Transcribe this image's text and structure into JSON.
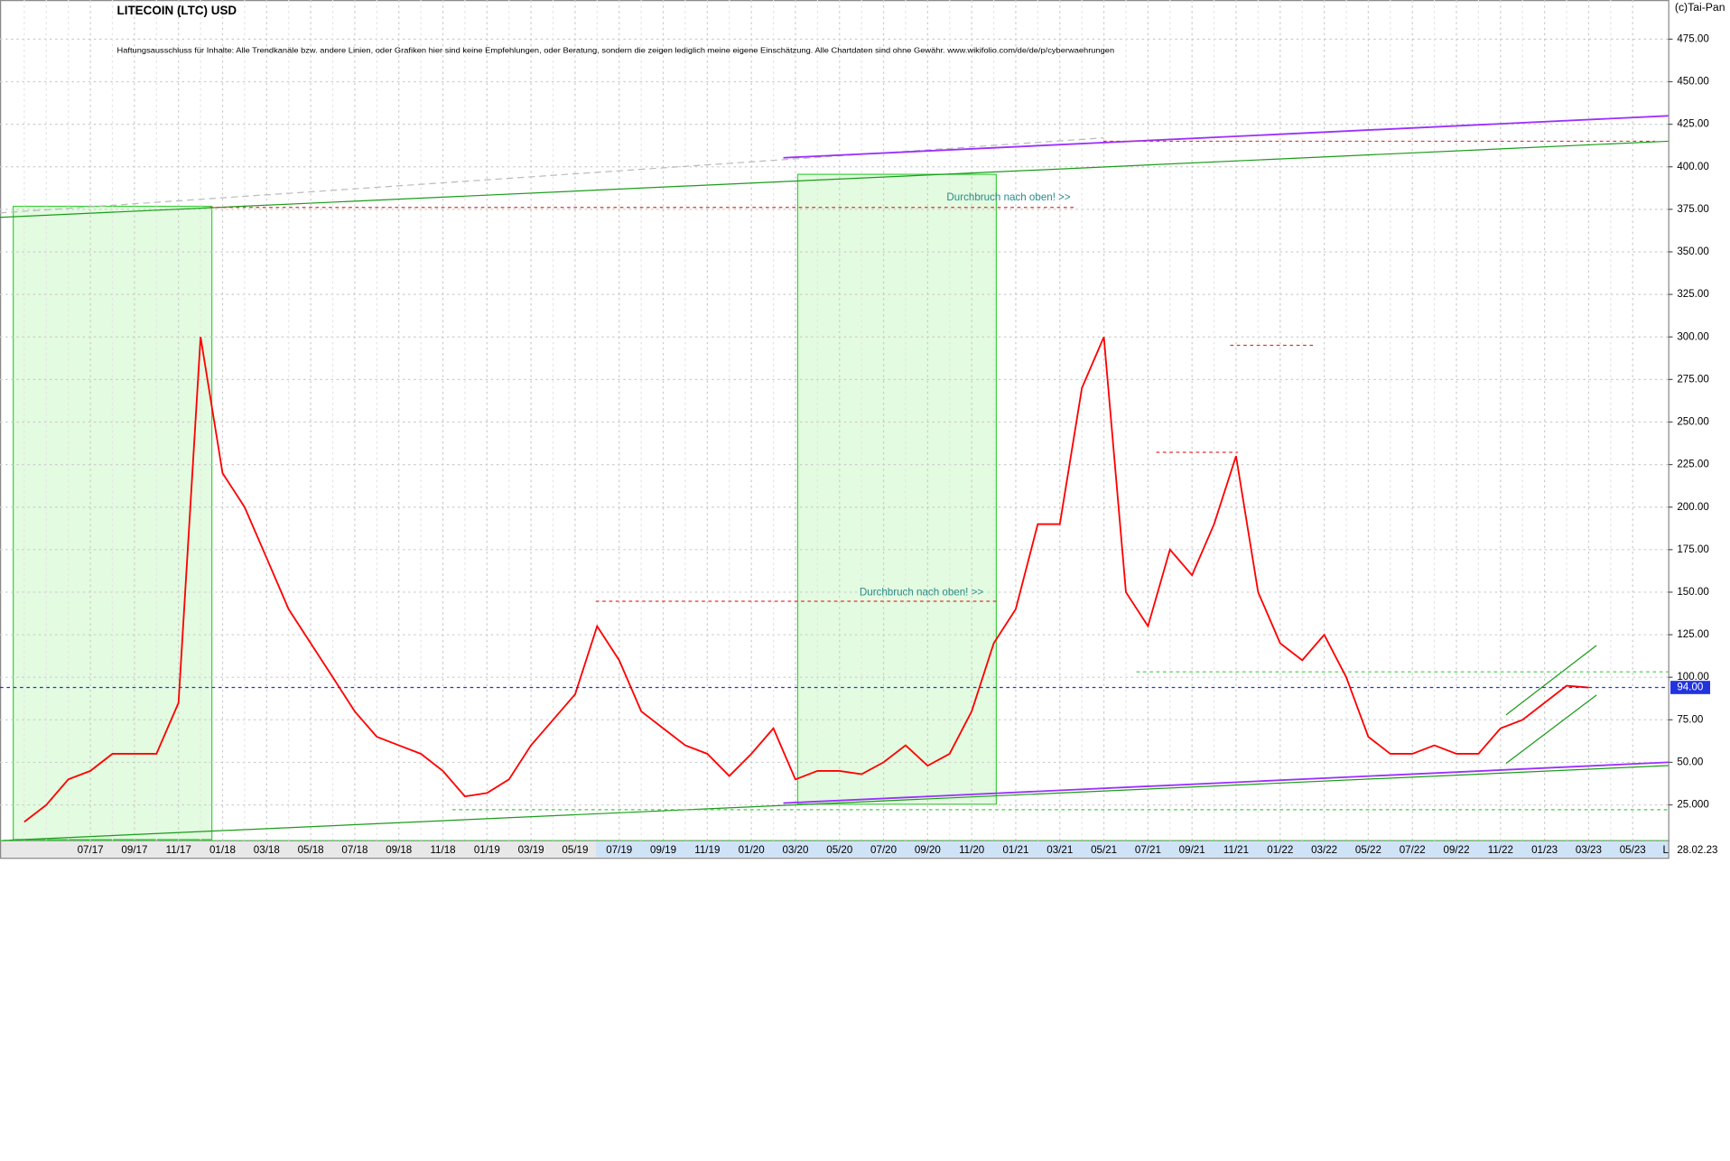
{
  "chart_data": {
    "type": "line",
    "title": "LITECOIN (LTC) USD",
    "subtitle": "Haftungsausschluss für Inhalte: Alle Trendkanäle bzw. andere Linien, oder Grafiken hier sind keine Empfehlungen, oder Beratung, sondern die zeigen lediglich meine eigene Einschätzung. Alle Chartdaten sind ohne Gewähr. www.wikifolio.com/de/de/p/cyberwaehrungen",
    "copyright": "(c)Tai-Pan",
    "date_label": "28.02.23",
    "corner_label": "L",
    "annotations": [
      "Durchbruch nach oben! >>",
      "Durchbruch nach oben! >>"
    ],
    "current_price": {
      "value": 94,
      "label": "94.00"
    },
    "categories": [
      null,
      null,
      null,
      "07/17",
      null,
      "09/17",
      null,
      "11/17",
      null,
      "01/18",
      null,
      "03/18",
      null,
      "05/18",
      null,
      "07/18",
      null,
      "09/18",
      null,
      "11/18",
      null,
      "01/19",
      null,
      "03/19",
      null,
      "05/19",
      null,
      "07/19",
      null,
      "09/19",
      null,
      "11/19",
      null,
      "01/20",
      null,
      "03/20",
      null,
      "05/20",
      null,
      "07/20",
      null,
      "09/20",
      null,
      "11/20",
      null,
      "01/21",
      null,
      "03/21",
      null,
      "05/21",
      null,
      "07/21",
      null,
      "09/21",
      null,
      "11/21",
      null,
      "01/22",
      null,
      "03/22",
      null,
      "05/22",
      null,
      "07/22",
      null,
      "09/22",
      null,
      "11/22",
      null,
      "01/23",
      null,
      "03/23",
      null,
      "05/23"
    ],
    "series": [
      {
        "name": "LTC",
        "color": "#ff0000",
        "values": [
          15,
          25,
          40,
          45,
          55,
          55,
          55,
          85,
          300,
          220,
          200,
          170,
          140,
          120,
          100,
          80,
          65,
          60,
          55,
          45,
          30,
          32,
          40,
          60,
          75,
          90,
          130,
          110,
          80,
          70,
          60,
          55,
          42,
          55,
          70,
          40,
          45,
          45,
          43,
          50,
          60,
          48,
          55,
          80,
          120,
          140,
          190,
          190,
          270,
          300,
          150,
          130,
          175,
          160,
          190,
          230,
          150,
          120,
          110,
          125,
          100,
          65,
          55,
          55,
          60,
          55,
          55,
          70,
          75,
          85,
          95,
          94,
          null,
          null
        ]
      }
    ],
    "ylim": [
      4,
      498
    ],
    "yticks": [
      {
        "value": 25,
        "label": "25.000"
      },
      {
        "value": 50,
        "label": "50.00"
      },
      {
        "value": 75,
        "label": "75.00"
      },
      {
        "value": 100,
        "label": "100.00"
      },
      {
        "value": 125,
        "label": "125.00"
      },
      {
        "value": 150,
        "label": "150.00"
      },
      {
        "value": 175,
        "label": "175.00"
      },
      {
        "value": 200,
        "label": "200.00"
      },
      {
        "value": 225,
        "label": "225.00"
      },
      {
        "value": 250,
        "label": "250.00"
      },
      {
        "value": 275,
        "label": "275.00"
      },
      {
        "value": 300,
        "label": "300.00"
      },
      {
        "value": 325,
        "label": "325.00"
      },
      {
        "value": 350,
        "label": "350.00"
      },
      {
        "value": 375,
        "label": "375.00"
      },
      {
        "value": 400,
        "label": "400.00"
      },
      {
        "value": 425,
        "label": "425.00"
      },
      {
        "value": 450,
        "label": "450.00"
      },
      {
        "value": 475,
        "label": "475.00"
      }
    ],
    "grid": true
  }
}
